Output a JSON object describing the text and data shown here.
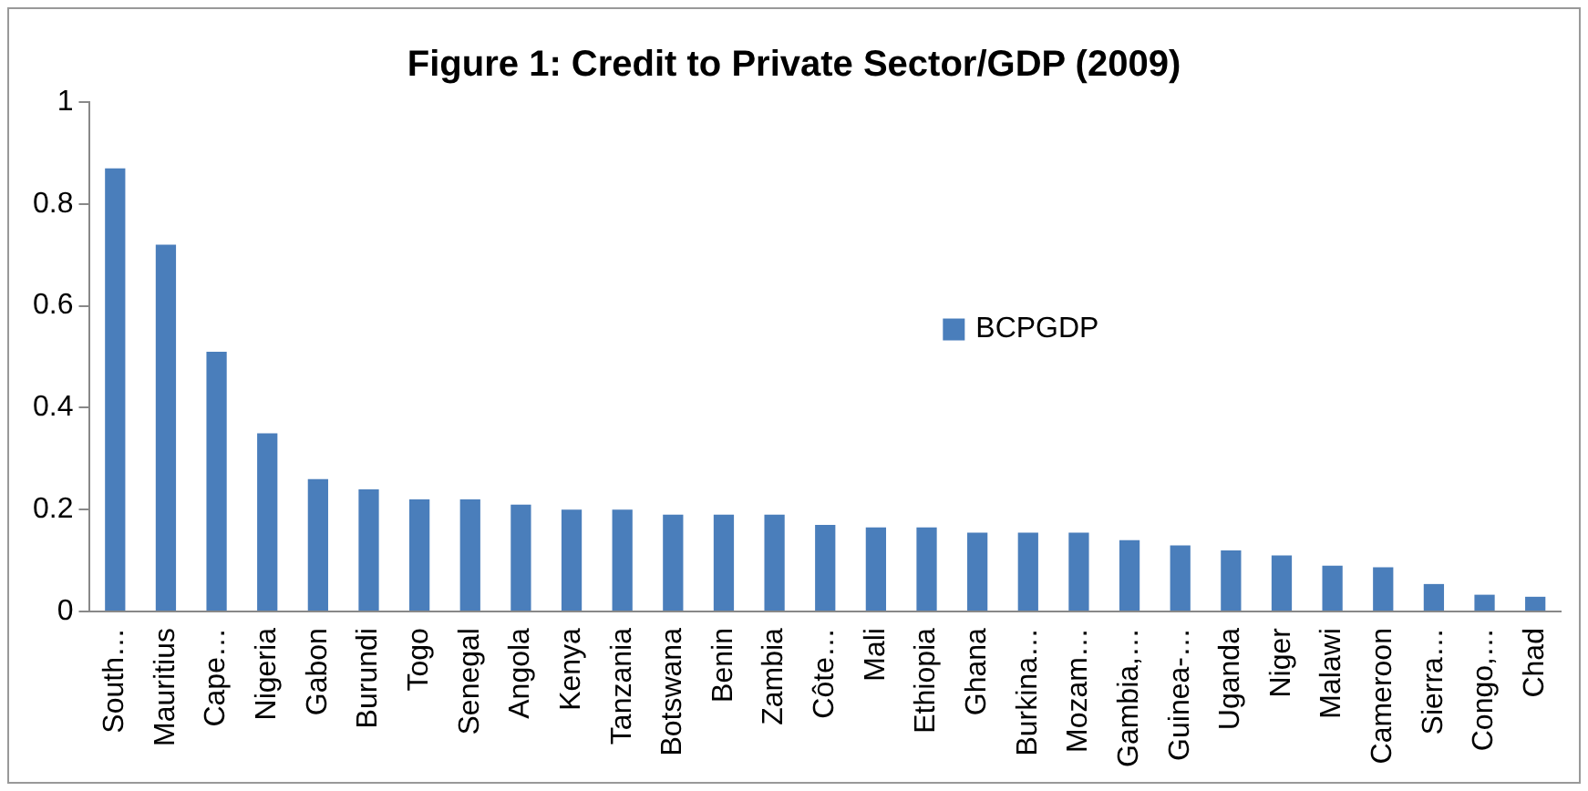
{
  "chart_data": {
    "type": "bar",
    "title": "Figure 1: Credit to Private Sector/GDP (2009)",
    "categories": [
      "South…",
      "Mauritius",
      "Cape…",
      "Nigeria",
      "Gabon",
      "Burundi",
      "Togo",
      "Senegal",
      "Angola",
      "Kenya",
      "Tanzania",
      "Botswana",
      "Benin",
      "Zambia",
      "Côte…",
      "Mali",
      "Ethiopia",
      "Ghana",
      "Burkina…",
      "Mozam…",
      "Gambia,…",
      "Guinea-…",
      "Uganda",
      "Niger",
      "Malawi",
      "Cameroon",
      "Sierra…",
      "Congo,…",
      "Chad"
    ],
    "series": [
      {
        "name": "BCPGDP",
        "color": "#4a7ebb",
        "values": [
          0.87,
          0.72,
          0.51,
          0.35,
          0.26,
          0.24,
          0.22,
          0.22,
          0.21,
          0.2,
          0.2,
          0.19,
          0.19,
          0.19,
          0.17,
          0.165,
          0.165,
          0.155,
          0.155,
          0.155,
          0.14,
          0.13,
          0.12,
          0.11,
          0.09,
          0.087,
          0.054,
          0.033,
          0.029
        ]
      }
    ],
    "ylim": [
      0,
      1
    ],
    "yticks": [
      0,
      0.2,
      0.4,
      0.6,
      0.8,
      1
    ],
    "grid": false,
    "legend": "center"
  }
}
